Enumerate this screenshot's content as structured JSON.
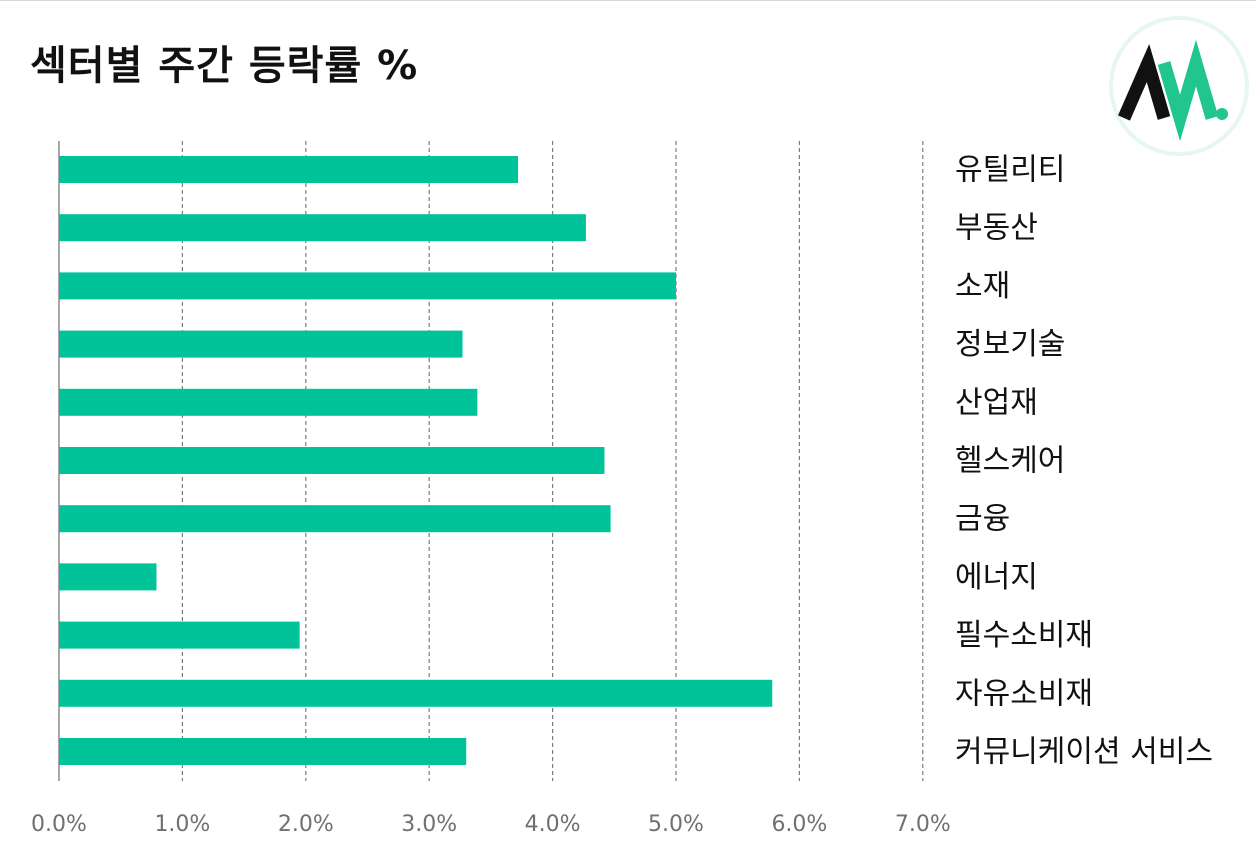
{
  "title": "섹터별 주간 등락률 %",
  "logo": {
    "text": "AW.",
    "colors": {
      "dark": "#111111",
      "accent": "#21c58e",
      "ring": "#e6f7ef"
    }
  },
  "chart_data": {
    "type": "bar",
    "orientation": "horizontal",
    "title": "섹터별 주간 등락률 %",
    "categories": [
      "유틸리티",
      "부동산",
      "소재",
      "정보기술",
      "산업재",
      "헬스케어",
      "금융",
      "에너지",
      "필수소비재",
      "자유소비재",
      "커뮤니케이션 서비스"
    ],
    "values": [
      3.72,
      4.27,
      5.0,
      3.27,
      3.39,
      4.42,
      4.47,
      0.79,
      1.95,
      5.78,
      3.3
    ],
    "xlim": [
      0,
      7
    ],
    "xticks": [
      0,
      1,
      2,
      3,
      4,
      5,
      6,
      7
    ],
    "xtick_labels": [
      "0.0%",
      "1.0%",
      "2.0%",
      "3.0%",
      "4.0%",
      "5.0%",
      "6.0%",
      "7.0%"
    ],
    "bar_color": "#00c39a",
    "grid": "vertical-dashed",
    "category_labels_position": "right"
  }
}
